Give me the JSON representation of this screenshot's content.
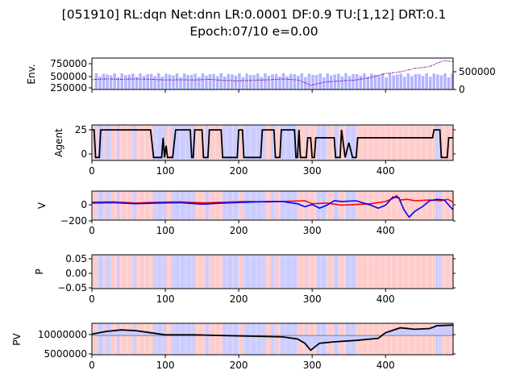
{
  "chart_data": {
    "type": "line",
    "title_line1": "[051910] RL:dqn Net:dnn LR:0.0001 DF:0.9 TU:[1,12] DRT:0.1",
    "title_line2": "Epoch:07/10 e=0.00",
    "x_range": [
      0,
      492
    ],
    "x_ticks": [
      "0",
      "100",
      "200",
      "300",
      "400"
    ],
    "colors": {
      "buy": "#ff0000",
      "sell": "#0000ff",
      "volume": "#b3b3ff",
      "line": "#000000",
      "bg_buy": "#ffcccc",
      "bg_sell": "#ccccff"
    },
    "panels": [
      {
        "id": "env",
        "ylabel": "Env.",
        "left_ticks": [
          "750000",
          "500000",
          "250000"
        ],
        "right_ticks": [
          "500000",
          "0"
        ],
        "ylim": [
          150000,
          880000
        ],
        "price": [
          [
            0,
            380000
          ],
          [
            20,
            395000
          ],
          [
            40,
            385000
          ],
          [
            60,
            395000
          ],
          [
            80,
            385000
          ],
          [
            100,
            370000
          ],
          [
            120,
            375000
          ],
          [
            140,
            370000
          ],
          [
            160,
            385000
          ],
          [
            180,
            360000
          ],
          [
            200,
            350000
          ],
          [
            220,
            365000
          ],
          [
            240,
            375000
          ],
          [
            260,
            395000
          ],
          [
            280,
            370000
          ],
          [
            290,
            310000
          ],
          [
            298,
            245000
          ],
          [
            305,
            275000
          ],
          [
            320,
            330000
          ],
          [
            340,
            350000
          ],
          [
            360,
            370000
          ],
          [
            380,
            430000
          ],
          [
            400,
            520000
          ],
          [
            420,
            560000
          ],
          [
            440,
            640000
          ],
          [
            460,
            680000
          ],
          [
            470,
            760000
          ],
          [
            480,
            820000
          ],
          [
            492,
            800000
          ]
        ],
        "volume_ylim": [
          0,
          1000000
        ],
        "volume_level": 0.45
      },
      {
        "id": "agent",
        "ylabel": "Agent",
        "left_ticks": [
          "25",
          "0"
        ],
        "ylim": [
          -3,
          33
        ]
      },
      {
        "id": "v",
        "ylabel": "V",
        "left_ticks": [
          "0",
          "−200"
        ],
        "ylim": [
          -240,
          150
        ]
      },
      {
        "id": "p",
        "ylabel": "P",
        "left_ticks": [
          "0.05",
          "0.00",
          "−0.05"
        ],
        "ylim": [
          -0.06,
          0.06
        ]
      },
      {
        "id": "pv",
        "ylabel": "PV",
        "left_ticks": [
          "10000000",
          "5000000"
        ],
        "ylim": [
          4500000,
          13500000
        ],
        "baseline": 10000000,
        "pv": [
          [
            0,
            10400000
          ],
          [
            20,
            11200000
          ],
          [
            40,
            11600000
          ],
          [
            60,
            11400000
          ],
          [
            80,
            10800000
          ],
          [
            100,
            10200000
          ],
          [
            140,
            10200000
          ],
          [
            180,
            10000000
          ],
          [
            220,
            9800000
          ],
          [
            260,
            9600000
          ],
          [
            280,
            9000000
          ],
          [
            290,
            7800000
          ],
          [
            298,
            5800000
          ],
          [
            310,
            7800000
          ],
          [
            330,
            8200000
          ],
          [
            360,
            8600000
          ],
          [
            390,
            9200000
          ],
          [
            400,
            10800000
          ],
          [
            420,
            12200000
          ],
          [
            440,
            11800000
          ],
          [
            460,
            12000000
          ],
          [
            470,
            12800000
          ],
          [
            492,
            13000000
          ]
        ]
      }
    ],
    "regions": [
      [
        0,
        1,
        7
      ],
      [
        1,
        7,
        17
      ],
      [
        0,
        17,
        20
      ],
      [
        1,
        20,
        26
      ],
      [
        0,
        26,
        34
      ],
      [
        1,
        34,
        38
      ],
      [
        0,
        38,
        55
      ],
      [
        1,
        55,
        60
      ],
      [
        0,
        60,
        84
      ],
      [
        1,
        84,
        101
      ],
      [
        0,
        101,
        108
      ],
      [
        1,
        108,
        140
      ],
      [
        0,
        140,
        154
      ],
      [
        1,
        154,
        160
      ],
      [
        0,
        160,
        178
      ],
      [
        1,
        178,
        200
      ],
      [
        0,
        200,
        206
      ],
      [
        1,
        206,
        236
      ],
      [
        0,
        236,
        244
      ],
      [
        1,
        244,
        250
      ],
      [
        0,
        250,
        256
      ],
      [
        1,
        256,
        280
      ],
      [
        0,
        280,
        292
      ],
      [
        1,
        292,
        294
      ],
      [
        0,
        294,
        306
      ],
      [
        1,
        306,
        320
      ],
      [
        0,
        320,
        330
      ],
      [
        1,
        330,
        336
      ],
      [
        0,
        336,
        346
      ],
      [
        1,
        346,
        360
      ],
      [
        0,
        360,
        468
      ],
      [
        1,
        468,
        476
      ],
      [
        0,
        476,
        492
      ]
    ],
    "agent_action": [
      [
        0,
        28
      ],
      [
        3,
        28
      ],
      [
        5,
        0
      ],
      [
        10,
        0
      ],
      [
        12,
        28
      ],
      [
        80,
        28
      ],
      [
        84,
        0
      ],
      [
        95,
        0
      ],
      [
        97,
        20
      ],
      [
        99,
        0
      ],
      [
        101,
        12
      ],
      [
        103,
        0
      ],
      [
        110,
        0
      ],
      [
        114,
        28
      ],
      [
        134,
        28
      ],
      [
        136,
        0
      ],
      [
        138,
        0
      ],
      [
        140,
        28
      ],
      [
        150,
        28
      ],
      [
        152,
        0
      ],
      [
        158,
        0
      ],
      [
        160,
        28
      ],
      [
        176,
        28
      ],
      [
        178,
        0
      ],
      [
        198,
        0
      ],
      [
        200,
        28
      ],
      [
        205,
        28
      ],
      [
        207,
        0
      ],
      [
        230,
        0
      ],
      [
        232,
        28
      ],
      [
        248,
        28
      ],
      [
        250,
        0
      ],
      [
        256,
        0
      ],
      [
        258,
        28
      ],
      [
        276,
        28
      ],
      [
        278,
        0
      ],
      [
        280,
        0
      ],
      [
        282,
        28
      ],
      [
        284,
        0
      ],
      [
        292,
        0
      ],
      [
        294,
        20
      ],
      [
        298,
        20
      ],
      [
        300,
        0
      ],
      [
        303,
        0
      ],
      [
        305,
        20
      ],
      [
        330,
        20
      ],
      [
        332,
        0
      ],
      [
        338,
        0
      ],
      [
        340,
        28
      ],
      [
        345,
        0
      ],
      [
        350,
        15
      ],
      [
        355,
        0
      ],
      [
        360,
        0
      ],
      [
        362,
        20
      ],
      [
        464,
        20
      ],
      [
        466,
        28
      ],
      [
        474,
        28
      ],
      [
        476,
        0
      ],
      [
        484,
        0
      ],
      [
        486,
        20
      ],
      [
        492,
        20
      ]
    ],
    "v_buy": [
      [
        0,
        0
      ],
      [
        30,
        5
      ],
      [
        60,
        -10
      ],
      [
        90,
        0
      ],
      [
        120,
        5
      ],
      [
        150,
        -8
      ],
      [
        180,
        0
      ],
      [
        210,
        10
      ],
      [
        240,
        5
      ],
      [
        270,
        15
      ],
      [
        290,
        20
      ],
      [
        300,
        -20
      ],
      [
        320,
        -10
      ],
      [
        340,
        -40
      ],
      [
        360,
        -30
      ],
      [
        380,
        -20
      ],
      [
        400,
        10
      ],
      [
        410,
        50
      ],
      [
        415,
        90
      ],
      [
        420,
        30
      ],
      [
        430,
        40
      ],
      [
        440,
        20
      ],
      [
        460,
        30
      ],
      [
        475,
        20
      ],
      [
        485,
        40
      ],
      [
        492,
        0
      ]
    ],
    "v_sell": [
      [
        0,
        -10
      ],
      [
        30,
        -5
      ],
      [
        60,
        -20
      ],
      [
        90,
        -10
      ],
      [
        120,
        -5
      ],
      [
        150,
        -25
      ],
      [
        180,
        -10
      ],
      [
        210,
        0
      ],
      [
        240,
        10
      ],
      [
        260,
        10
      ],
      [
        280,
        -20
      ],
      [
        290,
        -60
      ],
      [
        300,
        -30
      ],
      [
        310,
        -80
      ],
      [
        320,
        -40
      ],
      [
        330,
        20
      ],
      [
        340,
        10
      ],
      [
        360,
        20
      ],
      [
        380,
        -40
      ],
      [
        390,
        -80
      ],
      [
        400,
        -40
      ],
      [
        410,
        70
      ],
      [
        418,
        60
      ],
      [
        425,
        -100
      ],
      [
        432,
        -200
      ],
      [
        440,
        -120
      ],
      [
        450,
        -60
      ],
      [
        460,
        20
      ],
      [
        470,
        40
      ],
      [
        480,
        30
      ],
      [
        488,
        -60
      ],
      [
        492,
        -100
      ]
    ]
  }
}
